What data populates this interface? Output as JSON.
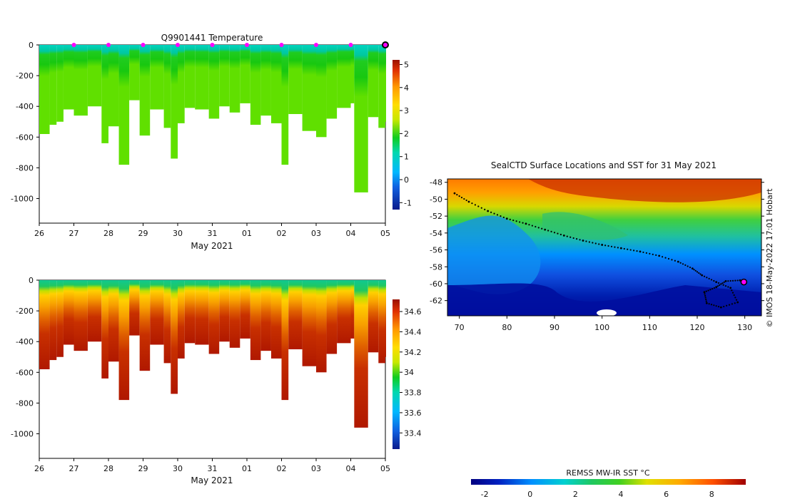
{
  "chart_data": [
    {
      "type": "heatmap",
      "title": "Q9901441  Temperature",
      "xlabel": "May 2021",
      "ylabel": "",
      "x_ticks": [
        "26",
        "27",
        "28",
        "29",
        "30",
        "31",
        "01",
        "02",
        "03",
        "04",
        "05"
      ],
      "y_ticks": [
        0,
        -200,
        -400,
        -600,
        -800,
        -1000
      ],
      "ylim": [
        -1160,
        0
      ],
      "colorbar": {
        "ticks": [
          5,
          4,
          3,
          2,
          1,
          0,
          -1
        ],
        "range": [
          -1.3,
          5.2
        ]
      },
      "surface_marker_days": [
        27,
        28,
        29,
        30,
        31,
        32,
        33,
        34,
        35
      ],
      "last_profile_day": 36,
      "max_depth_profile": [
        [
          26.0,
          -580
        ],
        [
          26.3,
          -520
        ],
        [
          26.5,
          -500
        ],
        [
          26.7,
          -420
        ],
        [
          27.0,
          -460
        ],
        [
          27.4,
          -400
        ],
        [
          27.8,
          -640
        ],
        [
          28.0,
          -530
        ],
        [
          28.3,
          -780
        ],
        [
          28.6,
          -360
        ],
        [
          28.9,
          -590
        ],
        [
          29.2,
          -420
        ],
        [
          29.6,
          -540
        ],
        [
          29.8,
          -740
        ],
        [
          30.0,
          -510
        ],
        [
          30.2,
          -410
        ],
        [
          30.5,
          -420
        ],
        [
          30.9,
          -480
        ],
        [
          31.2,
          -400
        ],
        [
          31.5,
          -440
        ],
        [
          31.8,
          -380
        ],
        [
          32.1,
          -520
        ],
        [
          32.4,
          -460
        ],
        [
          32.7,
          -510
        ],
        [
          33.0,
          -780
        ],
        [
          33.2,
          -450
        ],
        [
          33.6,
          -560
        ],
        [
          34.0,
          -600
        ],
        [
          34.3,
          -480
        ],
        [
          34.6,
          -410
        ],
        [
          35.0,
          -380
        ],
        [
          35.1,
          -960
        ],
        [
          35.5,
          -470
        ],
        [
          35.8,
          -540
        ],
        [
          36.0,
          -500
        ]
      ]
    },
    {
      "type": "heatmap",
      "title": "",
      "xlabel": "May 2021",
      "ylabel": "",
      "x_ticks": [
        "26",
        "27",
        "28",
        "29",
        "30",
        "31",
        "01",
        "02",
        "03",
        "04",
        "05"
      ],
      "y_ticks": [
        0,
        -200,
        -400,
        -600,
        -800,
        -1000
      ],
      "ylim": [
        -1160,
        0
      ],
      "colorbar": {
        "ticks": [
          34.6,
          34.4,
          34.2,
          34,
          33.8,
          33.6,
          33.4
        ],
        "range": [
          33.24,
          34.72
        ]
      }
    },
    {
      "type": "heatmap",
      "title": "SealCTD Surface Locations and SST for 31 May 2021",
      "x_ticks": [
        70,
        80,
        90,
        100,
        110,
        120,
        130
      ],
      "y_ticks": [
        -48,
        -50,
        -52,
        -54,
        -56,
        -58,
        -60,
        -62
      ],
      "xlim": [
        67.5,
        133.5
      ],
      "ylim": [
        -63.8,
        -47.6
      ],
      "credit": "© IMOS 18-May-2022 17:01 Hobart",
      "current_position": [
        129.8,
        -59.8
      ],
      "track": [
        [
          69,
          -49.3
        ],
        [
          72,
          -50.3
        ],
        [
          76,
          -51.4
        ],
        [
          80,
          -52.3
        ],
        [
          84,
          -52.9
        ],
        [
          88,
          -53.6
        ],
        [
          92,
          -54.3
        ],
        [
          96,
          -54.9
        ],
        [
          100,
          -55.4
        ],
        [
          104,
          -55.8
        ],
        [
          108,
          -56.2
        ],
        [
          112,
          -56.7
        ],
        [
          116,
          -57.4
        ],
        [
          119,
          -58.2
        ],
        [
          121,
          -59.0
        ],
        [
          124,
          -59.8
        ],
        [
          127,
          -60.5
        ],
        [
          128.5,
          -62.2
        ],
        [
          125,
          -62.8
        ],
        [
          122,
          -62.3
        ],
        [
          121.5,
          -61.0
        ],
        [
          124,
          -60.4
        ],
        [
          126,
          -59.7
        ],
        [
          129,
          -59.6
        ],
        [
          129.8,
          -59.8
        ]
      ]
    },
    {
      "type": "colorbar",
      "title": "REMSS MW-IR SST °C",
      "ticks": [
        -2,
        0,
        2,
        4,
        6,
        8
      ],
      "range": [
        -2.6,
        9.5
      ]
    }
  ]
}
